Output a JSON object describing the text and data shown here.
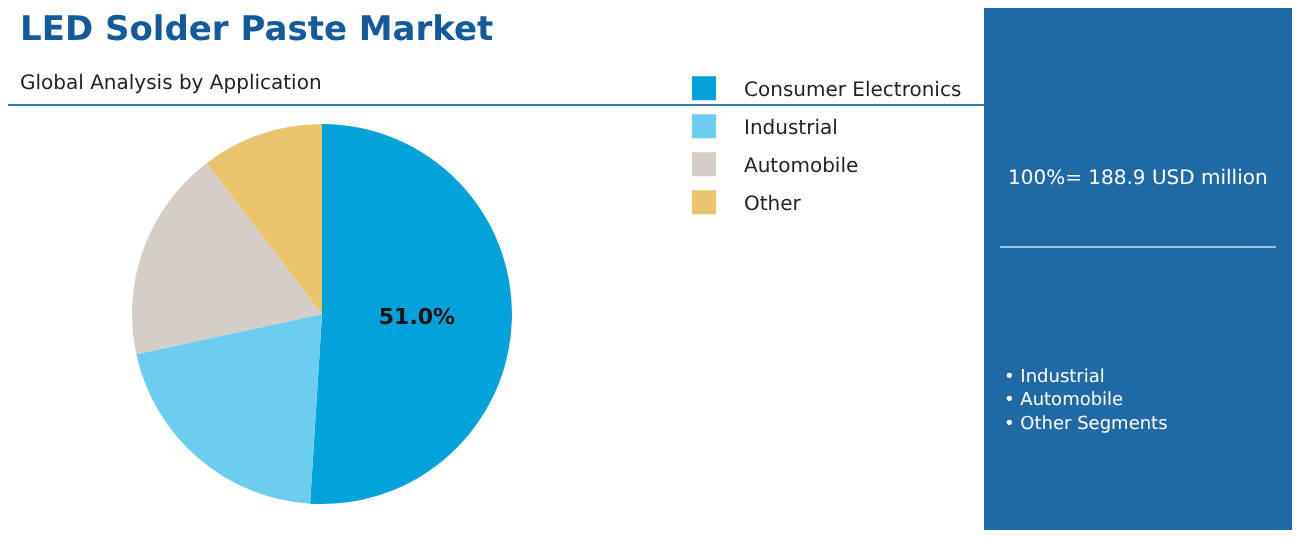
{
  "chart_data": {
    "type": "pie",
    "title": "LED Solder Paste Market",
    "subtitle": "Global Analysis by Application",
    "categories": [
      "Consumer Electronics",
      "Industrial",
      "Automobile",
      "Other"
    ],
    "values": [
      51.0,
      20.6,
      18.0,
      10.4
    ],
    "colors": [
      "#00a3d9",
      "#6ccdf0",
      "#d5cdc8",
      "#e9c46d"
    ],
    "value_labels": [
      "51.0%",
      null,
      null,
      null
    ],
    "legend": "right",
    "annotations": [
      "100%= 188.9 USD million",
      "• Industrial\n• Automobile\n• Other Segments"
    ]
  }
}
